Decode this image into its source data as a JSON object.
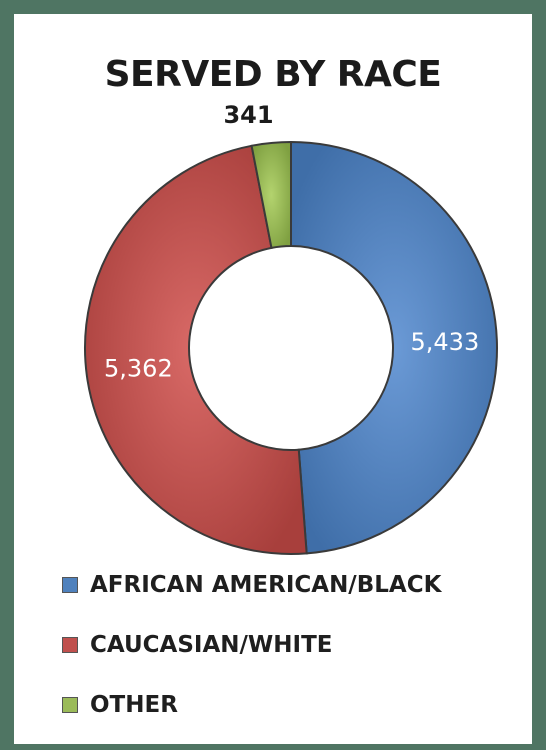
{
  "chart_data": {
    "type": "pie",
    "title": "SERVED BY RACE",
    "categories": [
      "AFRICAN AMERICAN/BLACK",
      "CAUCASIAN/WHITE",
      "OTHER"
    ],
    "values": [
      5433,
      5362,
      341
    ],
    "labels": [
      "5,433",
      "5,362",
      "341"
    ],
    "colors": [
      "#4f81bd",
      "#c0504d",
      "#9bbb59"
    ],
    "donut": true,
    "legend": "bottom"
  }
}
